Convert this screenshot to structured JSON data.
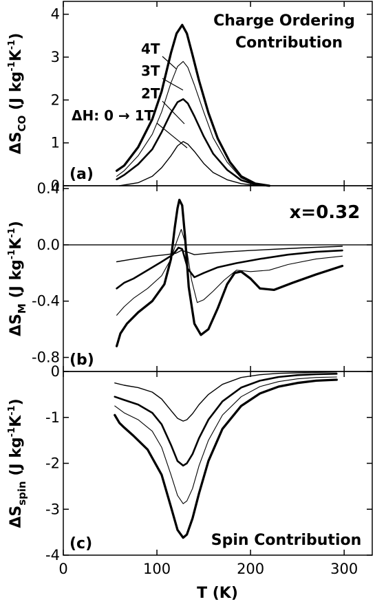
{
  "chart_data": [
    {
      "type": "line",
      "panel": "a",
      "panel_label": "(a)",
      "annotation": [
        "Charge Ordering",
        "Contribution"
      ],
      "ylabel": {
        "main": "ΔS",
        "sub": "CO",
        "units": " (J kg",
        "exp1": "-1",
        "mid": "K",
        "exp2": "-1",
        "close": ")"
      },
      "ylim": [
        0,
        4.3
      ],
      "yticks": [
        0,
        1,
        2,
        3,
        4
      ],
      "yticklabels": [
        "0",
        "1",
        "2",
        "3",
        "4"
      ],
      "xlim": [
        0,
        330
      ],
      "field_labels": [
        "4T",
        "3T",
        "2T",
        "ΔH: 0 → 1T"
      ],
      "series": [
        {
          "name": "ΔH: 0 → 1T",
          "stroke": 1.4,
          "x": [
            60,
            80,
            95,
            105,
            115,
            122,
            128,
            133,
            140,
            150,
            160,
            175,
            190,
            205,
            215
          ],
          "y": [
            0,
            0.07,
            0.22,
            0.42,
            0.7,
            0.93,
            1.03,
            0.97,
            0.8,
            0.52,
            0.31,
            0.14,
            0.05,
            0.01,
            0
          ]
        },
        {
          "name": "2T",
          "stroke": 2.6,
          "x": [
            57,
            65,
            80,
            95,
            105,
            115,
            122,
            128,
            133,
            140,
            150,
            160,
            175,
            190,
            205,
            218
          ],
          "y": [
            0.15,
            0.25,
            0.5,
            0.85,
            1.25,
            1.7,
            1.95,
            2.02,
            1.92,
            1.62,
            1.15,
            0.75,
            0.37,
            0.13,
            0.03,
            0
          ]
        },
        {
          "name": "3T",
          "stroke": 1.1,
          "x": [
            57,
            65,
            80,
            95,
            105,
            115,
            122,
            128,
            133,
            140,
            150,
            160,
            175,
            190,
            205,
            220
          ],
          "y": [
            0.22,
            0.35,
            0.7,
            1.2,
            1.72,
            2.4,
            2.78,
            2.9,
            2.76,
            2.35,
            1.72,
            1.12,
            0.55,
            0.18,
            0.04,
            0
          ]
        },
        {
          "name": "4T",
          "stroke": 3.3,
          "x": [
            57,
            65,
            80,
            95,
            105,
            115,
            121,
            127,
            132,
            138,
            145,
            155,
            165,
            178,
            190,
            205,
            220
          ],
          "y": [
            0.35,
            0.47,
            0.9,
            1.55,
            2.2,
            3.1,
            3.55,
            3.75,
            3.55,
            3.05,
            2.45,
            1.7,
            1.1,
            0.55,
            0.22,
            0.05,
            0
          ]
        }
      ]
    },
    {
      "type": "line",
      "panel": "b",
      "panel_label": "(b)",
      "annotation": [
        "x=0.32"
      ],
      "ylabel": {
        "main": "ΔS",
        "sub": "M",
        "units": " (J kg",
        "exp1": "-1",
        "mid": "K",
        "exp2": "-1",
        "close": ")"
      },
      "ylim": [
        -0.9,
        0.42
      ],
      "yticks": [
        0.4,
        0,
        -0.4,
        -0.8
      ],
      "yticklabels": [
        "0.4",
        "0.0",
        "-0.4",
        "-0.8"
      ],
      "xlim": [
        0,
        330
      ],
      "zero_line": true,
      "series": [
        {
          "name": "ΔH: 0 → 1T",
          "stroke": 1.4,
          "x": [
            57,
            75,
            95,
            110,
            120,
            126,
            132,
            140,
            155,
            175,
            200,
            230,
            260,
            298
          ],
          "y": [
            -0.12,
            -0.1,
            -0.08,
            -0.07,
            -0.06,
            -0.04,
            -0.05,
            -0.07,
            -0.06,
            -0.05,
            -0.04,
            -0.03,
            -0.02,
            -0.01
          ]
        },
        {
          "name": "2T",
          "stroke": 2.6,
          "x": [
            57,
            65,
            75,
            90,
            105,
            117,
            123,
            127,
            133,
            140,
            150,
            165,
            185,
            210,
            240,
            270,
            298
          ],
          "y": [
            -0.31,
            -0.27,
            -0.24,
            -0.18,
            -0.12,
            -0.07,
            -0.02,
            -0.03,
            -0.17,
            -0.23,
            -0.2,
            -0.16,
            -0.13,
            -0.1,
            -0.07,
            -0.05,
            -0.04
          ]
        },
        {
          "name": "3T",
          "stroke": 1.1,
          "x": [
            57,
            65,
            75,
            90,
            105,
            115,
            121,
            126,
            131,
            137,
            143,
            150,
            160,
            172,
            185,
            200,
            220,
            240,
            270,
            298
          ],
          "y": [
            -0.5,
            -0.44,
            -0.38,
            -0.31,
            -0.22,
            -0.1,
            0.02,
            0.11,
            0.0,
            -0.25,
            -0.41,
            -0.39,
            -0.33,
            -0.25,
            -0.18,
            -0.19,
            -0.18,
            -0.14,
            -0.1,
            -0.08
          ]
        },
        {
          "name": "4T",
          "stroke": 3.3,
          "x": [
            57,
            61,
            68,
            80,
            95,
            108,
            115,
            119,
            122,
            124,
            127,
            130,
            134,
            140,
            147,
            155,
            165,
            175,
            183,
            190,
            200,
            210,
            225,
            245,
            270,
            298
          ],
          "y": [
            -0.72,
            -0.63,
            -0.56,
            -0.48,
            -0.4,
            -0.28,
            -0.1,
            0.12,
            0.26,
            0.32,
            0.28,
            0.06,
            -0.3,
            -0.56,
            -0.64,
            -0.6,
            -0.45,
            -0.28,
            -0.2,
            -0.19,
            -0.24,
            -0.31,
            -0.32,
            -0.27,
            -0.21,
            -0.15
          ]
        }
      ]
    },
    {
      "type": "line",
      "panel": "c",
      "panel_label": "(c)",
      "annotation": [
        "Spin Contribution"
      ],
      "ylabel": {
        "main": "ΔS",
        "sub": "spin",
        "units": " (J kg",
        "exp1": "-1",
        "mid": "K",
        "exp2": "-1",
        "close": ")"
      },
      "ylim": [
        -4,
        0
      ],
      "yticks": [
        0,
        -1,
        -2,
        -3,
        -4
      ],
      "yticklabels": [
        "0",
        "-1",
        "-2",
        "-3",
        "-4"
      ],
      "xlim": [
        0,
        330
      ],
      "xticks": [
        0,
        100,
        200,
        300
      ],
      "xticklabels": [
        "0",
        "100",
        "200",
        "300"
      ],
      "xlabel": "T (K)",
      "series": [
        {
          "name": "ΔH: 0 → 1T",
          "stroke": 1.4,
          "x": [
            55,
            65,
            80,
            95,
            105,
            115,
            122,
            128,
            132,
            138,
            145,
            155,
            170,
            190,
            210,
            230,
            250,
            270,
            292
          ],
          "y": [
            -0.25,
            -0.3,
            -0.35,
            -0.45,
            -0.6,
            -0.85,
            -1.02,
            -1.08,
            -1.05,
            -0.92,
            -0.72,
            -0.5,
            -0.28,
            -0.13,
            -0.07,
            -0.04,
            -0.03,
            -0.02,
            -0.01
          ]
        },
        {
          "name": "2T",
          "stroke": 2.6,
          "x": [
            55,
            65,
            80,
            95,
            105,
            115,
            122,
            128,
            132,
            138,
            145,
            155,
            170,
            190,
            210,
            230,
            250,
            270,
            292
          ],
          "y": [
            -0.55,
            -0.62,
            -0.72,
            -0.9,
            -1.15,
            -1.6,
            -1.95,
            -2.05,
            -2.0,
            -1.8,
            -1.45,
            -1.05,
            -0.65,
            -0.35,
            -0.2,
            -0.12,
            -0.08,
            -0.06,
            -0.05
          ]
        },
        {
          "name": "3T",
          "stroke": 1.1,
          "x": [
            55,
            65,
            80,
            95,
            105,
            115,
            122,
            128,
            132,
            138,
            145,
            155,
            170,
            190,
            210,
            230,
            250,
            270,
            292
          ],
          "y": [
            -0.75,
            -0.9,
            -1.05,
            -1.3,
            -1.65,
            -2.25,
            -2.7,
            -2.88,
            -2.82,
            -2.55,
            -2.05,
            -1.5,
            -0.95,
            -0.55,
            -0.33,
            -0.22,
            -0.16,
            -0.13,
            -0.12
          ]
        },
        {
          "name": "4T",
          "stroke": 3.3,
          "x": [
            55,
            60,
            65,
            75,
            90,
            105,
            115,
            122,
            128,
            132,
            138,
            145,
            155,
            170,
            190,
            210,
            230,
            250,
            270,
            292
          ],
          "y": [
            -0.95,
            -1.12,
            -1.22,
            -1.4,
            -1.7,
            -2.25,
            -2.95,
            -3.45,
            -3.62,
            -3.55,
            -3.2,
            -2.65,
            -1.95,
            -1.25,
            -0.75,
            -0.48,
            -0.33,
            -0.25,
            -0.2,
            -0.18
          ]
        }
      ]
    }
  ]
}
